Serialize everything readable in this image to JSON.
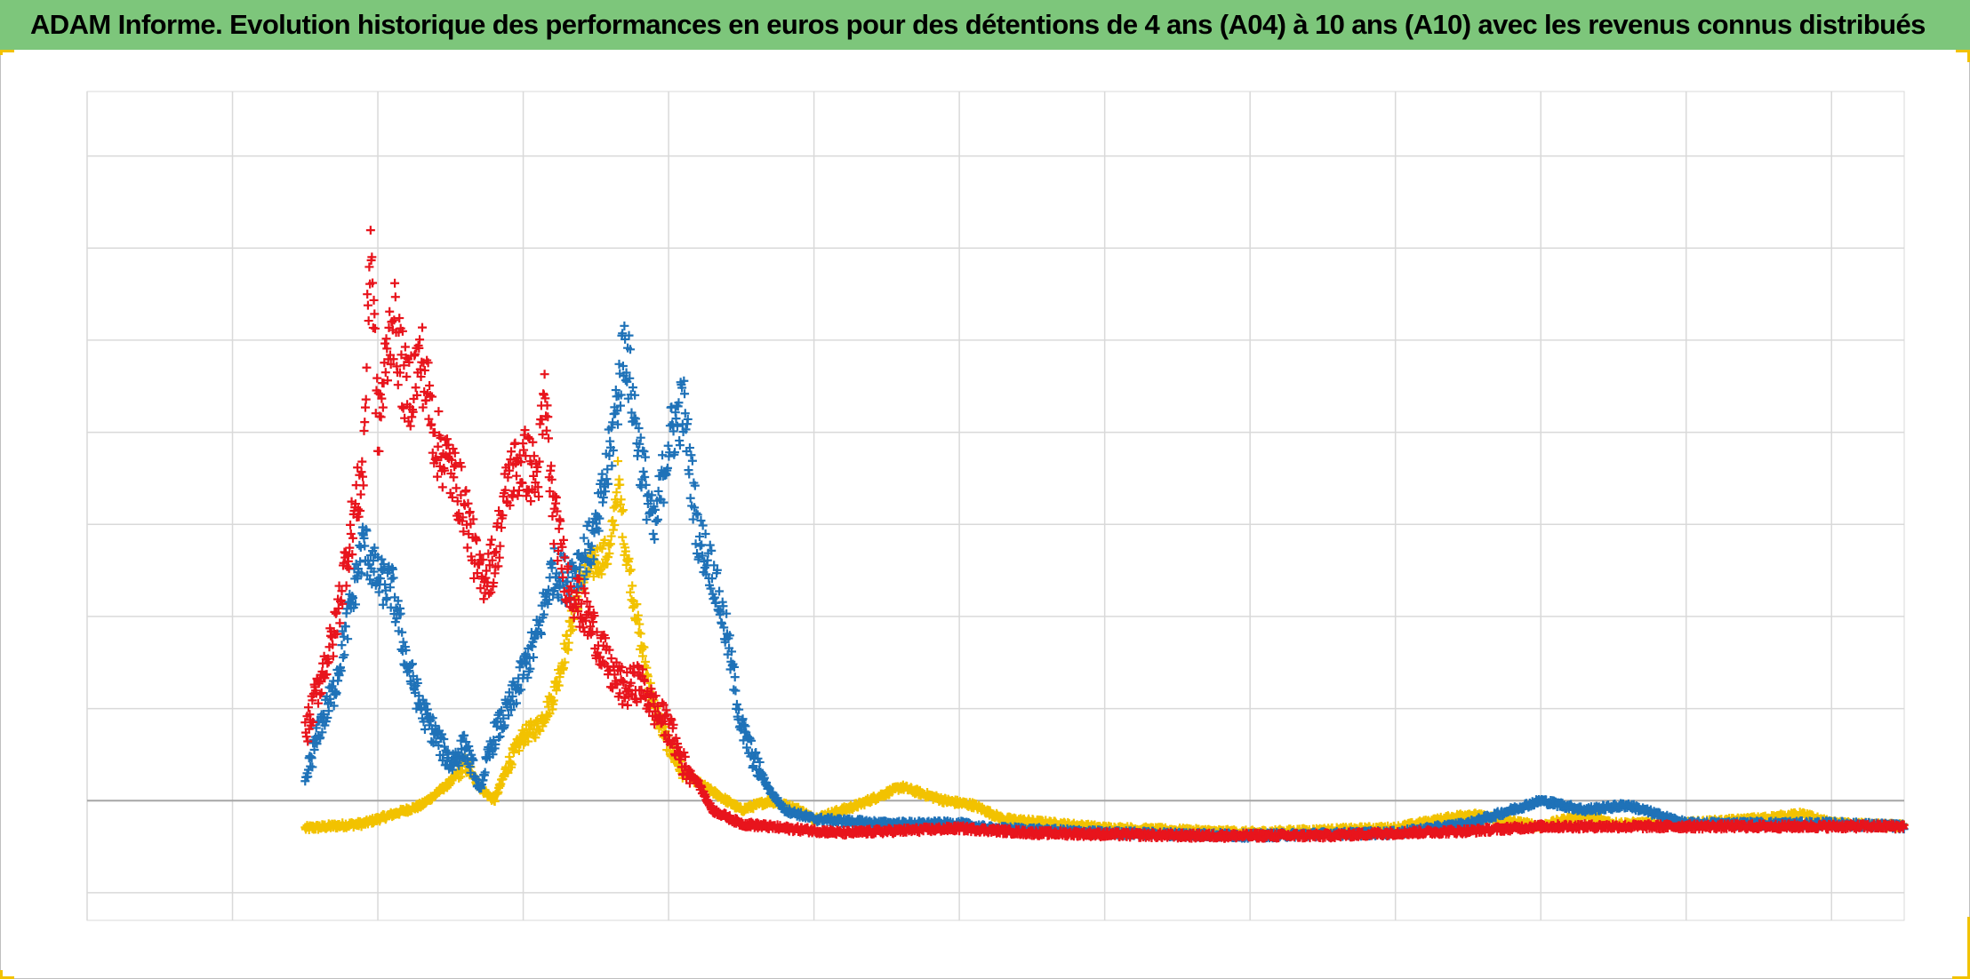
{
  "chart_data": {
    "type": "scatter",
    "title": "ADAM Informe. Evolution historique des performances en euros pour des détentions de 4 ans (A04) à 10 ans (A10) avec les revenus connus distribués",
    "xlabel": "",
    "ylabel": "",
    "xlim": [
      0,
      12.5
    ],
    "ylim": [
      -1.3,
      7.7
    ],
    "grid": true,
    "legend": "none",
    "marker": "plus",
    "series": [
      {
        "color": "#f2c200",
        "anchors": [
          [
            1.5,
            -0.3
          ],
          [
            1.9,
            -0.25
          ],
          [
            2.1,
            -0.15
          ],
          [
            2.3,
            -0.05
          ],
          [
            2.5,
            0.2
          ],
          [
            2.6,
            0.4
          ],
          [
            2.7,
            0.15
          ],
          [
            2.8,
            0.0
          ],
          [
            2.9,
            0.4
          ],
          [
            3.0,
            0.7
          ],
          [
            3.1,
            0.8
          ],
          [
            3.2,
            1.1
          ],
          [
            3.3,
            1.7
          ],
          [
            3.4,
            2.4
          ],
          [
            3.5,
            2.6
          ],
          [
            3.6,
            2.7
          ],
          [
            3.65,
            3.5
          ],
          [
            3.7,
            2.8
          ],
          [
            3.8,
            1.8
          ],
          [
            3.9,
            1.0
          ],
          [
            4.0,
            0.6
          ],
          [
            4.1,
            0.3
          ],
          [
            4.2,
            0.2
          ],
          [
            4.3,
            0.1
          ],
          [
            4.5,
            -0.1
          ],
          [
            4.7,
            0.0
          ],
          [
            4.9,
            -0.1
          ],
          [
            5.0,
            -0.2
          ],
          [
            5.3,
            -0.05
          ],
          [
            5.6,
            0.15
          ],
          [
            5.9,
            0.0
          ],
          [
            6.1,
            -0.05
          ],
          [
            6.3,
            -0.2
          ],
          [
            7,
            -0.3
          ],
          [
            8,
            -0.35
          ],
          [
            9,
            -0.3
          ],
          [
            9.5,
            -0.15
          ],
          [
            10,
            -0.28
          ],
          [
            10.3,
            -0.15
          ],
          [
            10.5,
            -0.25
          ],
          [
            11,
            -0.25
          ],
          [
            11.5,
            -0.2
          ],
          [
            11.8,
            -0.15
          ],
          [
            12,
            -0.25
          ],
          [
            12.5,
            -0.28
          ]
        ],
        "jitter": 0.12
      },
      {
        "color": "#1f72b8",
        "anchors": [
          [
            1.5,
            0.2
          ],
          [
            1.6,
            0.8
          ],
          [
            1.7,
            1.2
          ],
          [
            1.8,
            2.0
          ],
          [
            1.9,
            2.8
          ],
          [
            2.0,
            2.4
          ],
          [
            2.1,
            2.3
          ],
          [
            2.2,
            1.5
          ],
          [
            2.3,
            1.0
          ],
          [
            2.4,
            0.7
          ],
          [
            2.5,
            0.4
          ],
          [
            2.6,
            0.6
          ],
          [
            2.7,
            0.1
          ],
          [
            2.8,
            0.7
          ],
          [
            2.9,
            1.0
          ],
          [
            3.0,
            1.4
          ],
          [
            3.1,
            1.8
          ],
          [
            3.2,
            2.5
          ],
          [
            3.3,
            2.4
          ],
          [
            3.4,
            2.6
          ],
          [
            3.5,
            2.9
          ],
          [
            3.6,
            3.8
          ],
          [
            3.7,
            5.0
          ],
          [
            3.8,
            3.8
          ],
          [
            3.9,
            2.9
          ],
          [
            4.0,
            3.9
          ],
          [
            4.1,
            4.3
          ],
          [
            4.2,
            2.9
          ],
          [
            4.3,
            2.5
          ],
          [
            4.4,
            1.8
          ],
          [
            4.5,
            0.8
          ],
          [
            4.6,
            0.4
          ],
          [
            4.7,
            0.1
          ],
          [
            4.8,
            -0.1
          ],
          [
            5.0,
            -0.2
          ],
          [
            5.5,
            -0.25
          ],
          [
            6,
            -0.25
          ],
          [
            6.2,
            -0.3
          ],
          [
            7,
            -0.35
          ],
          [
            8,
            -0.38
          ],
          [
            9,
            -0.35
          ],
          [
            9.5,
            -0.25
          ],
          [
            9.8,
            -0.1
          ],
          [
            10,
            0.0
          ],
          [
            10.3,
            -0.1
          ],
          [
            10.6,
            -0.05
          ],
          [
            11,
            -0.25
          ],
          [
            11.5,
            -0.25
          ],
          [
            12,
            -0.25
          ],
          [
            12.5,
            -0.28
          ]
        ],
        "jitter": 0.18
      },
      {
        "color": "#e8141c",
        "anchors": [
          [
            1.5,
            0.7
          ],
          [
            1.6,
            1.3
          ],
          [
            1.7,
            1.8
          ],
          [
            1.8,
            2.8
          ],
          [
            1.9,
            3.6
          ],
          [
            1.95,
            6.2
          ],
          [
            2.0,
            4.0
          ],
          [
            2.1,
            5.3
          ],
          [
            2.2,
            4.4
          ],
          [
            2.3,
            4.8
          ],
          [
            2.4,
            3.9
          ],
          [
            2.5,
            3.6
          ],
          [
            2.6,
            3.2
          ],
          [
            2.7,
            2.4
          ],
          [
            2.8,
            2.6
          ],
          [
            2.9,
            3.5
          ],
          [
            3.0,
            3.7
          ],
          [
            3.1,
            3.5
          ],
          [
            3.15,
            4.4
          ],
          [
            3.2,
            3.2
          ],
          [
            3.3,
            2.4
          ],
          [
            3.4,
            2.1
          ],
          [
            3.5,
            1.8
          ],
          [
            3.6,
            1.4
          ],
          [
            3.7,
            1.2
          ],
          [
            3.8,
            1.3
          ],
          [
            3.9,
            1.0
          ],
          [
            4.0,
            0.8
          ],
          [
            4.1,
            0.4
          ],
          [
            4.2,
            0.2
          ],
          [
            4.3,
            -0.1
          ],
          [
            4.5,
            -0.25
          ],
          [
            4.8,
            -0.3
          ],
          [
            5.2,
            -0.35
          ],
          [
            6,
            -0.3
          ],
          [
            6.5,
            -0.35
          ],
          [
            7.5,
            -0.38
          ],
          [
            8.5,
            -0.38
          ],
          [
            9,
            -0.35
          ],
          [
            9.5,
            -0.33
          ],
          [
            10,
            -0.28
          ],
          [
            11,
            -0.28
          ],
          [
            12.5,
            -0.28
          ]
        ],
        "jitter": 0.2
      }
    ]
  }
}
